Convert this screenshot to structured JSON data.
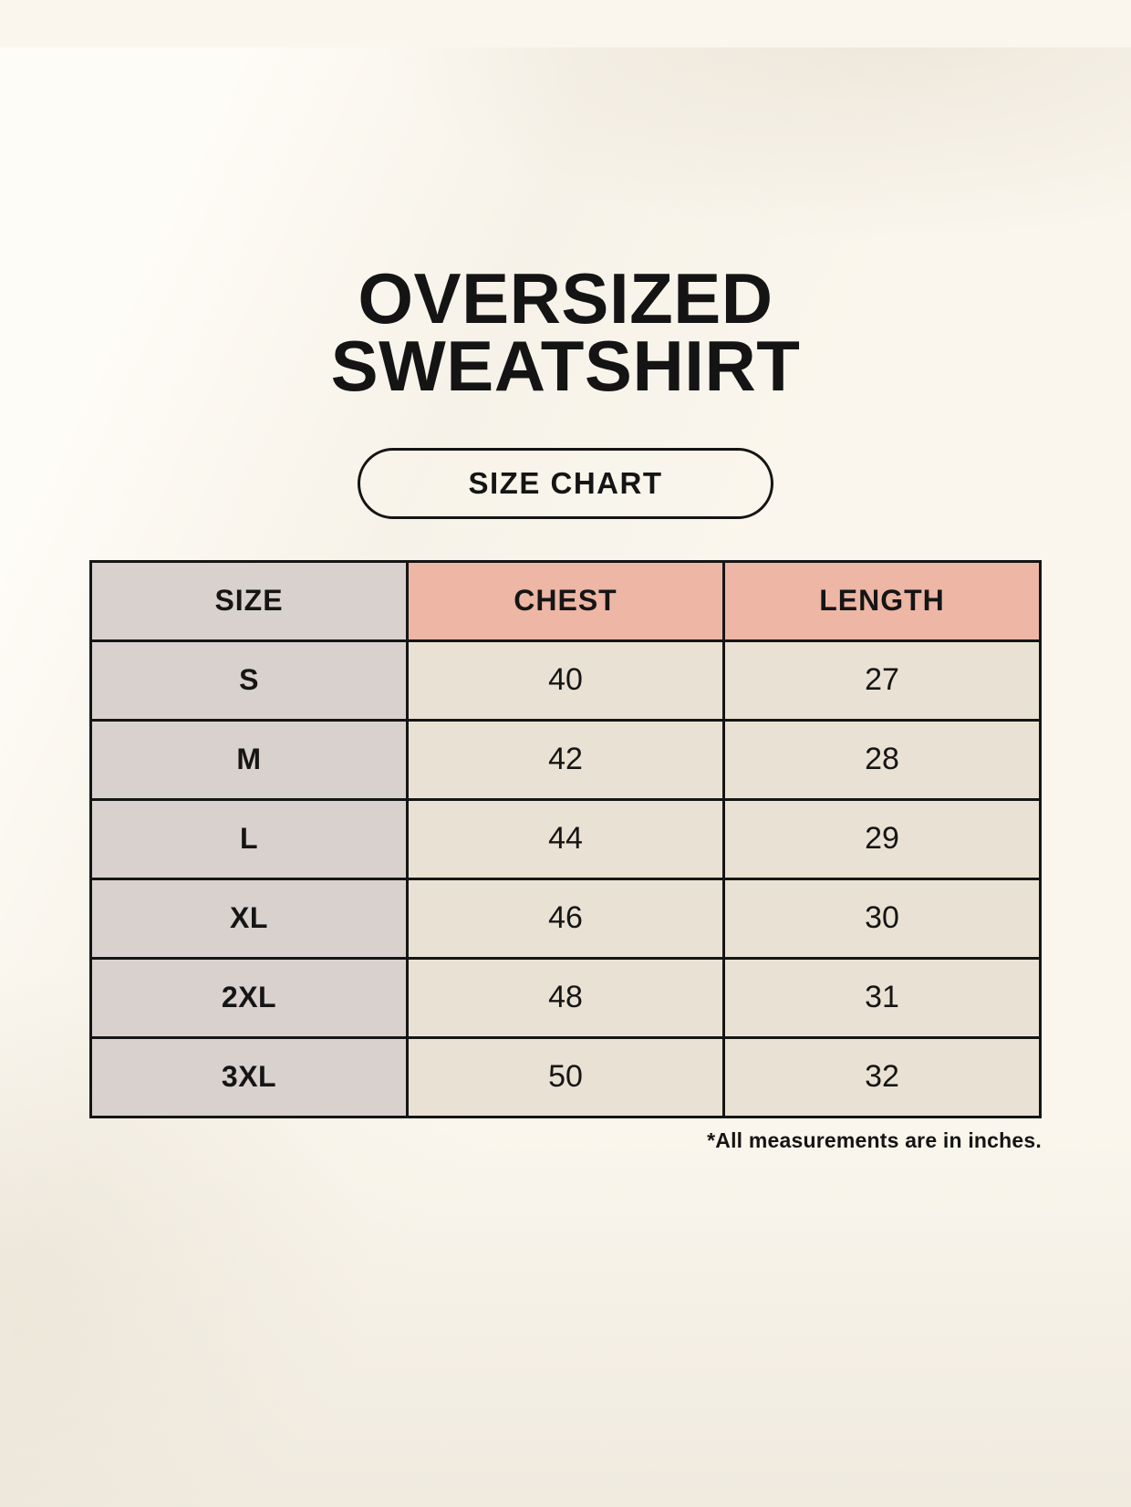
{
  "header": {
    "title_line1": "OVERSIZED",
    "title_line2": "SWEATSHIRT",
    "badge_label": "SIZE CHART"
  },
  "table": {
    "columns": [
      "SIZE",
      "CHEST",
      "LENGTH"
    ],
    "rows": [
      {
        "size": "S",
        "chest": "40",
        "length": "27"
      },
      {
        "size": "M",
        "chest": "42",
        "length": "28"
      },
      {
        "size": "L",
        "chest": "44",
        "length": "29"
      },
      {
        "size": "XL",
        "chest": "46",
        "length": "30"
      },
      {
        "size": "2XL",
        "chest": "48",
        "length": "31"
      },
      {
        "size": "3XL",
        "chest": "50",
        "length": "32"
      }
    ]
  },
  "footer": {
    "note": "*All measurements are in inches."
  },
  "colors": {
    "page_background": "#faf6ed",
    "size_column_bg": "#d9d1cd",
    "measure_header_bg": "#eeb6a5",
    "value_cell_bg": "#e9e2d4",
    "border": "#151515",
    "text": "#141414"
  },
  "chart_data": {
    "type": "table",
    "title": "OVERSIZED SWEATSHIRT",
    "subtitle": "SIZE CHART",
    "columns": [
      "SIZE",
      "CHEST",
      "LENGTH"
    ],
    "rows": [
      [
        "S",
        40,
        27
      ],
      [
        "M",
        42,
        28
      ],
      [
        "L",
        44,
        29
      ],
      [
        "XL",
        46,
        30
      ],
      [
        "2XL",
        48,
        31
      ],
      [
        "3XL",
        50,
        32
      ]
    ],
    "units": "inches",
    "note": "*All measurements are in inches."
  }
}
